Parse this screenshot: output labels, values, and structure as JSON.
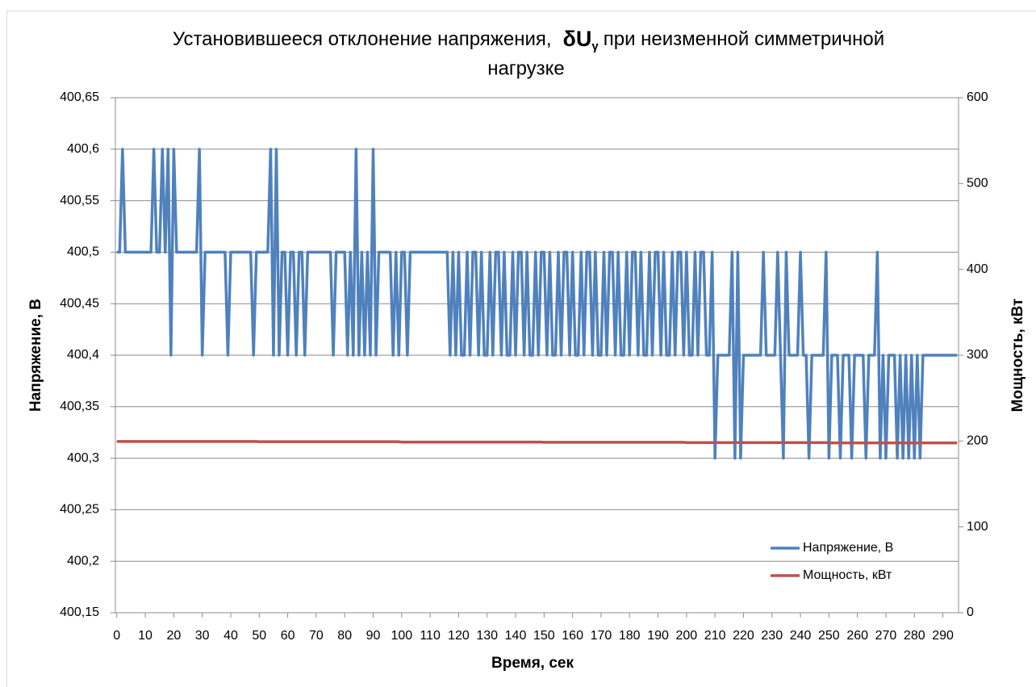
{
  "chart_data": {
    "type": "line",
    "title": {
      "line1": "Установившееся отклонение напряжения,",
      "symbol": "δU",
      "subscript": "γ",
      "line1b": "при неизменной симметричной",
      "line2": "нагрузке"
    },
    "xlabel": "Время, сек",
    "ylabel": "Напряжение, В",
    "y2label": "Мощность, кВт",
    "legend": "lower right",
    "grid": true,
    "xlim": [
      -0.5,
      295.5
    ],
    "xticks": [
      0,
      10,
      20,
      30,
      40,
      50,
      60,
      70,
      80,
      90,
      100,
      110,
      120,
      130,
      140,
      150,
      160,
      170,
      180,
      190,
      200,
      210,
      220,
      230,
      240,
      250,
      260,
      270,
      280,
      290
    ],
    "ylim": [
      400.15,
      400.65
    ],
    "yticks": [
      {
        "value": 400.15,
        "label": "400,15"
      },
      {
        "value": 400.2,
        "label": "400,2"
      },
      {
        "value": 400.25,
        "label": "400,25"
      },
      {
        "value": 400.3,
        "label": "400,3"
      },
      {
        "value": 400.35,
        "label": "400,35"
      },
      {
        "value": 400.4,
        "label": "400,4"
      },
      {
        "value": 400.45,
        "label": "400,45"
      },
      {
        "value": 400.5,
        "label": "400,5"
      },
      {
        "value": 400.55,
        "label": "400,55"
      },
      {
        "value": 400.6,
        "label": "400,6"
      },
      {
        "value": 400.65,
        "label": "400,65"
      }
    ],
    "y2lim": [
      0,
      600
    ],
    "y2ticks": [
      0,
      100,
      200,
      300,
      400,
      500,
      600
    ],
    "x": [
      0,
      1,
      2,
      3,
      4,
      5,
      6,
      7,
      8,
      9,
      10,
      11,
      12,
      13,
      14,
      15,
      16,
      17,
      18,
      19,
      20,
      21,
      22,
      23,
      24,
      25,
      26,
      27,
      28,
      29,
      30,
      31,
      32,
      33,
      34,
      35,
      36,
      37,
      38,
      39,
      40,
      41,
      42,
      43,
      44,
      45,
      46,
      47,
      48,
      49,
      50,
      51,
      52,
      53,
      54,
      55,
      56,
      57,
      58,
      59,
      60,
      61,
      62,
      63,
      64,
      65,
      66,
      67,
      68,
      69,
      70,
      71,
      72,
      73,
      74,
      75,
      76,
      77,
      78,
      79,
      80,
      81,
      82,
      83,
      84,
      85,
      86,
      87,
      88,
      89,
      90,
      91,
      92,
      93,
      94,
      95,
      96,
      97,
      98,
      99,
      100,
      101,
      102,
      103,
      104,
      105,
      106,
      107,
      108,
      109,
      110,
      111,
      112,
      113,
      114,
      115,
      116,
      117,
      118,
      119,
      120,
      121,
      122,
      123,
      124,
      125,
      126,
      127,
      128,
      129,
      130,
      131,
      132,
      133,
      134,
      135,
      136,
      137,
      138,
      139,
      140,
      141,
      142,
      143,
      144,
      145,
      146,
      147,
      148,
      149,
      150,
      151,
      152,
      153,
      154,
      155,
      156,
      157,
      158,
      159,
      160,
      161,
      162,
      163,
      164,
      165,
      166,
      167,
      168,
      169,
      170,
      171,
      172,
      173,
      174,
      175,
      176,
      177,
      178,
      179,
      180,
      181,
      182,
      183,
      184,
      185,
      186,
      187,
      188,
      189,
      190,
      191,
      192,
      193,
      194,
      195,
      196,
      197,
      198,
      199,
      200,
      201,
      202,
      203,
      204,
      205,
      206,
      207,
      208,
      209,
      210,
      211,
      212,
      213,
      214,
      215,
      216,
      217,
      218,
      219,
      220,
      221,
      222,
      223,
      224,
      225,
      226,
      227,
      228,
      229,
      230,
      231,
      232,
      233,
      234,
      235,
      236,
      237,
      238,
      239,
      240,
      241,
      242,
      243,
      244,
      245,
      246,
      247,
      248,
      249,
      250,
      251,
      252,
      253,
      254,
      255,
      256,
      257,
      258,
      259,
      260,
      261,
      262,
      263,
      264,
      265,
      266,
      267,
      268,
      269,
      270,
      271,
      272,
      273,
      274,
      275,
      276,
      277,
      278,
      279,
      280,
      281,
      282,
      283,
      284,
      285,
      286,
      287,
      288,
      289,
      290,
      291,
      292,
      293,
      294,
      295
    ],
    "series": [
      {
        "name": "Напряжение, В",
        "color": "#4f81bd",
        "axis": "y",
        "values": [
          400.5,
          400.5,
          400.6,
          400.5,
          400.5,
          400.5,
          400.5,
          400.5,
          400.5,
          400.5,
          400.5,
          400.5,
          400.5,
          400.6,
          400.5,
          400.5,
          400.6,
          400.5,
          400.6,
          400.4,
          400.6,
          400.5,
          400.5,
          400.5,
          400.5,
          400.5,
          400.5,
          400.5,
          400.5,
          400.6,
          400.4,
          400.5,
          400.5,
          400.5,
          400.5,
          400.5,
          400.5,
          400.5,
          400.5,
          400.4,
          400.5,
          400.5,
          400.5,
          400.5,
          400.5,
          400.5,
          400.5,
          400.5,
          400.4,
          400.5,
          400.5,
          400.5,
          400.5,
          400.5,
          400.6,
          400.4,
          400.6,
          400.4,
          400.5,
          400.5,
          400.4,
          400.5,
          400.5,
          400.4,
          400.5,
          400.5,
          400.4,
          400.5,
          400.5,
          400.5,
          400.5,
          400.5,
          400.5,
          400.5,
          400.5,
          400.5,
          400.4,
          400.5,
          400.5,
          400.5,
          400.5,
          400.4,
          400.5,
          400.4,
          400.6,
          400.4,
          400.5,
          400.4,
          400.5,
          400.4,
          400.6,
          400.4,
          400.5,
          400.5,
          400.5,
          400.5,
          400.5,
          400.4,
          400.5,
          400.4,
          400.5,
          400.5,
          400.4,
          400.5,
          400.5,
          400.5,
          400.5,
          400.5,
          400.5,
          400.5,
          400.5,
          400.5,
          400.5,
          400.5,
          400.5,
          400.5,
          400.5,
          400.4,
          400.5,
          400.4,
          400.5,
          400.4,
          400.4,
          400.5,
          400.4,
          400.5,
          400.5,
          400.4,
          400.5,
          400.4,
          400.4,
          400.5,
          400.4,
          400.5,
          400.5,
          400.4,
          400.5,
          400.4,
          400.4,
          400.5,
          400.4,
          400.5,
          400.5,
          400.4,
          400.5,
          400.4,
          400.4,
          400.5,
          400.4,
          400.5,
          400.5,
          400.4,
          400.5,
          400.4,
          400.4,
          400.5,
          400.4,
          400.5,
          400.5,
          400.4,
          400.5,
          400.4,
          400.4,
          400.5,
          400.4,
          400.5,
          400.5,
          400.4,
          400.5,
          400.4,
          400.4,
          400.5,
          400.4,
          400.5,
          400.5,
          400.4,
          400.5,
          400.4,
          400.4,
          400.5,
          400.4,
          400.5,
          400.5,
          400.4,
          400.5,
          400.4,
          400.4,
          400.5,
          400.4,
          400.5,
          400.5,
          400.4,
          400.5,
          400.4,
          400.4,
          400.5,
          400.4,
          400.5,
          400.5,
          400.4,
          400.5,
          400.4,
          400.4,
          400.5,
          400.4,
          400.5,
          400.5,
          400.4,
          400.4,
          400.5,
          400.3,
          400.4,
          400.4,
          400.4,
          400.4,
          400.4,
          400.5,
          400.3,
          400.5,
          400.3,
          400.4,
          400.4,
          400.4,
          400.4,
          400.4,
          400.4,
          400.4,
          400.5,
          400.4,
          400.4,
          400.4,
          400.4,
          400.5,
          400.4,
          400.3,
          400.5,
          400.4,
          400.4,
          400.4,
          400.4,
          400.5,
          400.4,
          400.4,
          400.3,
          400.4,
          400.4,
          400.4,
          400.4,
          400.4,
          400.5,
          400.3,
          400.4,
          400.4,
          400.4,
          400.3,
          400.4,
          400.4,
          400.4,
          400.3,
          400.4,
          400.4,
          400.4,
          400.4,
          400.3,
          400.4,
          400.4,
          400.4,
          400.5,
          400.3,
          400.4,
          400.3,
          400.4,
          400.4,
          400.4,
          400.3,
          400.4,
          400.3,
          400.4,
          400.3,
          400.4,
          400.3,
          400.4,
          400.3,
          400.4,
          400.4,
          400.4,
          400.4,
          400.4,
          400.4,
          400.4,
          400.4,
          400.4,
          400.4,
          400.4,
          400.4,
          400.4
        ]
      },
      {
        "name": "Мощность, кВт",
        "color": "#c0504d",
        "axis": "y2",
        "values": [
          199.5,
          199.5,
          199.5,
          199.5,
          199.5,
          199.5,
          199.5,
          199.5,
          199.5,
          199.5,
          199.5,
          199.5,
          199.5,
          199.5,
          199.5,
          199.5,
          199.5,
          199.5,
          199.5,
          199.5,
          199.5,
          199.5,
          199.5,
          199.5,
          199.5,
          199.5,
          199.5,
          199.5,
          199.5,
          199.5,
          199.5,
          199.5,
          199.5,
          199.5,
          199.5,
          199.5,
          199.5,
          199.5,
          199.5,
          199.5,
          199.5,
          199.5,
          199.5,
          199.5,
          199.5,
          199.5,
          199.5,
          199.5,
          199.5,
          199.5,
          199.2,
          199.2,
          199.2,
          199.2,
          199.2,
          199.2,
          199.2,
          199.2,
          199.2,
          199.2,
          199.2,
          199.2,
          199.2,
          199.2,
          199.2,
          199.2,
          199.2,
          199.2,
          199.2,
          199.2,
          199.2,
          199.2,
          199.2,
          199.2,
          199.2,
          199.2,
          199.2,
          199.2,
          199.2,
          199.2,
          199.2,
          199.2,
          199.2,
          199.2,
          199.2,
          199.2,
          199.2,
          199.2,
          199.2,
          199.2,
          199.2,
          199.2,
          199.2,
          199.2,
          199.2,
          199.2,
          199.2,
          199.2,
          199.2,
          199.2,
          198.8,
          198.8,
          198.8,
          198.8,
          198.8,
          198.8,
          198.8,
          198.8,
          198.8,
          198.8,
          198.8,
          198.8,
          198.8,
          198.8,
          198.8,
          198.8,
          198.8,
          198.8,
          198.8,
          198.8,
          198.8,
          198.8,
          198.8,
          198.8,
          198.8,
          198.8,
          198.8,
          198.8,
          198.8,
          198.8,
          198.8,
          198.8,
          198.8,
          198.8,
          198.8,
          198.8,
          198.8,
          198.8,
          198.8,
          198.8,
          198.8,
          198.8,
          198.8,
          198.8,
          198.8,
          198.8,
          198.8,
          198.8,
          198.8,
          198.8,
          198.5,
          198.5,
          198.5,
          198.5,
          198.5,
          198.5,
          198.5,
          198.5,
          198.5,
          198.5,
          198.5,
          198.5,
          198.5,
          198.5,
          198.5,
          198.5,
          198.5,
          198.5,
          198.5,
          198.5,
          198.5,
          198.5,
          198.5,
          198.5,
          198.5,
          198.5,
          198.5,
          198.5,
          198.5,
          198.5,
          198.5,
          198.5,
          198.5,
          198.5,
          198.5,
          198.5,
          198.5,
          198.5,
          198.5,
          198.5,
          198.5,
          198.5,
          198.5,
          198.5,
          198.5,
          198.5,
          198.5,
          198.5,
          198.5,
          198.5,
          198.2,
          198.2,
          198.2,
          198.2,
          198.2,
          198.2,
          198.2,
          198.2,
          198.2,
          198.2,
          198.2,
          198.2,
          198.2,
          198.2,
          198.2,
          198.2,
          198.2,
          198.2,
          198.2,
          198.2,
          198.2,
          198.2,
          198.2,
          198.2,
          198.2,
          198.2,
          198.2,
          198.2,
          198.2,
          198.2,
          198.2,
          198.2,
          198.2,
          198.2,
          198.2,
          198.2,
          198.2,
          198.2,
          198.2,
          198.2,
          198.2,
          198.2,
          198.2,
          198.2,
          198.2,
          198.2,
          198.2,
          198.2,
          198.2,
          198.2,
          197.9,
          197.9,
          197.9,
          197.9,
          197.9,
          197.9,
          197.9,
          197.9,
          197.9,
          197.9,
          197.9,
          197.9,
          197.9,
          197.9,
          197.9,
          197.9,
          197.9,
          197.9,
          197.9,
          197.9,
          197.9,
          197.9,
          197.9,
          197.9,
          197.9,
          197.9,
          197.9,
          197.9,
          197.9,
          197.9,
          197.9,
          197.9,
          197.9,
          197.9,
          197.9,
          197.9,
          197.9,
          197.9,
          197.9,
          197.9,
          197.9,
          197.9,
          197.9,
          197.9,
          197.9,
          197.9
        ]
      }
    ]
  }
}
